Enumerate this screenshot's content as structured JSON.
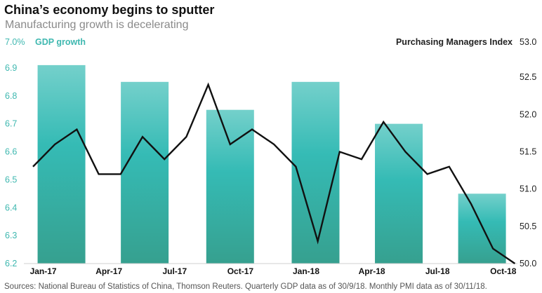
{
  "colors": {
    "bar_top": "#74d0cb",
    "bar_mid": "#35bbb5",
    "bar_bottom": "#36a08f",
    "line": "#111111",
    "left_axis": "#3fb8b0"
  },
  "chart_data": {
    "type": "bar+line",
    "title": "China’s economy begins to sputter",
    "subtitle": "Manufacturing growth is decelerating",
    "left_axis": {
      "label": "GDP growth",
      "top_tick": "7.0%",
      "ticks": [
        "6.9",
        "6.8",
        "6.7",
        "6.6",
        "6.5",
        "6.4",
        "6.3",
        "6.2"
      ],
      "range": [
        6.2,
        7.0
      ]
    },
    "right_axis": {
      "label": "Purchasing Managers Index",
      "ticks": [
        "53.0",
        "52.5",
        "52.0",
        "51.5",
        "51.0",
        "50.5",
        "50.0"
      ],
      "range": [
        50.0,
        53.0
      ]
    },
    "x_labels": [
      "Jan-17",
      "Apr-17",
      "Jul-17",
      "Oct-17",
      "Jan-18",
      "Apr-18",
      "Jul-18",
      "Oct-18"
    ],
    "gdp_series": {
      "name": "GDP growth (quarterly)",
      "month_index": [
        1.3,
        5.1,
        9.0,
        12.9,
        16.7,
        20.5
      ],
      "values": [
        6.91,
        6.85,
        6.75,
        6.85,
        6.7,
        6.45
      ]
    },
    "pmi_series": {
      "name": "Purchasing Managers Index (monthly)",
      "months": [
        "Jan-17",
        "Feb-17",
        "Mar-17",
        "Apr-17",
        "May-17",
        "Jun-17",
        "Jul-17",
        "Aug-17",
        "Sep-17",
        "Oct-17",
        "Nov-17",
        "Dec-17",
        "Jan-18",
        "Feb-18",
        "Mar-18",
        "Apr-18",
        "May-18",
        "Jun-18",
        "Jul-18",
        "Aug-18",
        "Sep-18",
        "Oct-18",
        "Nov-18"
      ],
      "values": [
        51.3,
        51.6,
        51.8,
        51.2,
        51.2,
        51.7,
        51.4,
        51.7,
        52.4,
        51.6,
        51.8,
        51.6,
        51.3,
        50.3,
        51.5,
        51.4,
        51.9,
        51.5,
        51.2,
        51.3,
        50.8,
        50.2,
        50.0
      ]
    }
  },
  "footer": "Sources: National Bureau of Statistics of China, Thomson Reuters. Quarterly GDP data as of 30/9/18. Monthly PMI data as of 30/11/18."
}
